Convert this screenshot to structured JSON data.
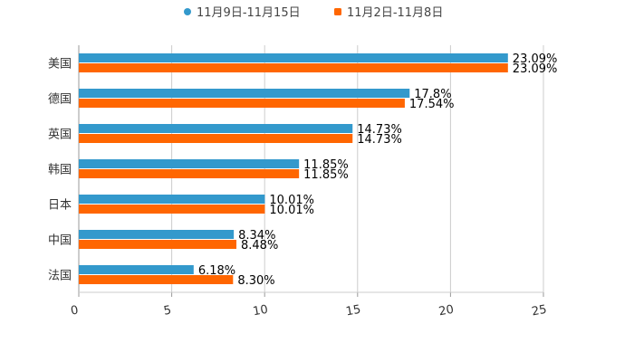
{
  "chart_data": {
    "type": "bar",
    "orientation": "horizontal",
    "title": "",
    "xlabel": "",
    "ylabel": "",
    "categories": [
      "美国",
      "德国",
      "英国",
      "韩国",
      "日本",
      "中国",
      "法国"
    ],
    "series": [
      {
        "name": "11月9日-11月15日",
        "color": "#3399cc",
        "marker": "circle",
        "values": [
          23.09,
          17.8,
          14.73,
          11.85,
          10.01,
          8.34,
          6.18
        ],
        "labels": [
          "23.09%",
          "17.8%",
          "14.73%",
          "11.85%",
          "10.01%",
          "8.34%",
          "6.18%"
        ]
      },
      {
        "name": "11月2日-11月8日",
        "color": "#ff6600",
        "marker": "square",
        "values": [
          23.09,
          17.54,
          14.73,
          11.85,
          10.01,
          8.48,
          8.3
        ],
        "labels": [
          "23.09%",
          "17.54%",
          "14.73%",
          "11.85%",
          "10.01%",
          "8.48%",
          "8.30%"
        ]
      }
    ],
    "xlim": [
      0,
      25
    ],
    "xticks": [
      0,
      5,
      10,
      15,
      20,
      25
    ],
    "xtick_labels": [
      "0",
      "5",
      "10",
      "15",
      "20",
      "25"
    ],
    "grid": true,
    "legend_position": "top-center"
  }
}
